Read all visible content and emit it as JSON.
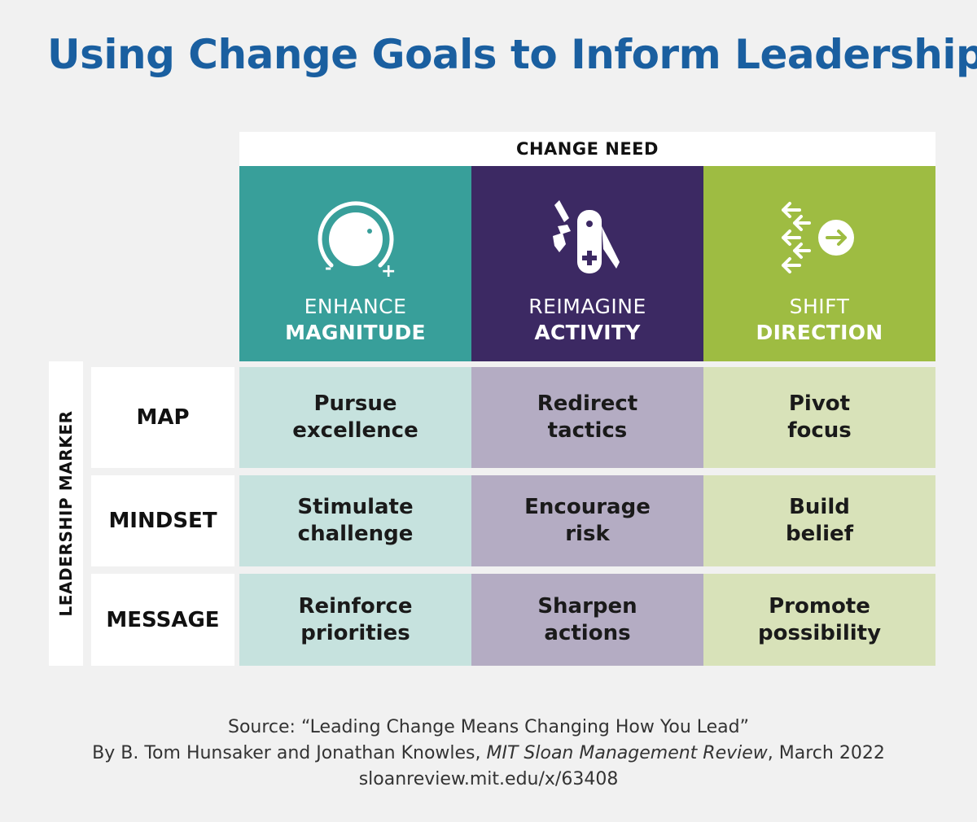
{
  "title": "Using Change Goals to Inform Leadership",
  "header": "CHANGE NEED",
  "side_label": "LEADERSHIP MARKER",
  "columns": [
    {
      "line1": "ENHANCE",
      "line2": "MAGNITUDE",
      "icon": "dial-icon",
      "color": "#389f9a",
      "cell_color": "#c6e2de"
    },
    {
      "line1": "REIMAGINE",
      "line2": "ACTIVITY",
      "icon": "multitool-icon",
      "color": "#3c2963",
      "cell_color": "#b4acc3"
    },
    {
      "line1": "SHIFT",
      "line2": "DIRECTION",
      "icon": "arrows-direction-icon",
      "color": "#9ebc42",
      "cell_color": "#d8e2b9"
    }
  ],
  "rows": [
    {
      "label": "MAP",
      "cells": [
        "Pursue\nexcellence",
        "Redirect\ntactics",
        "Pivot\nfocus"
      ]
    },
    {
      "label": "MINDSET",
      "cells": [
        "Stimulate\nchallenge",
        "Encourage\nrisk",
        "Build\nbelief"
      ]
    },
    {
      "label": "MESSAGE",
      "cells": [
        "Reinforce\npriorities",
        "Sharpen\nactions",
        "Promote\npossibility"
      ]
    }
  ],
  "dial_minus": "-",
  "dial_plus": "+",
  "source": {
    "line1": "Source: “Leading Change Means Changing How You Lead”",
    "line2_prefix": "By B. Tom Hunsaker and Jonathan Knowles, ",
    "line2_italic": "MIT Sloan Management Review",
    "line2_suffix": ", March 2022",
    "line3": "sloanreview.mit.edu/x/63408"
  }
}
